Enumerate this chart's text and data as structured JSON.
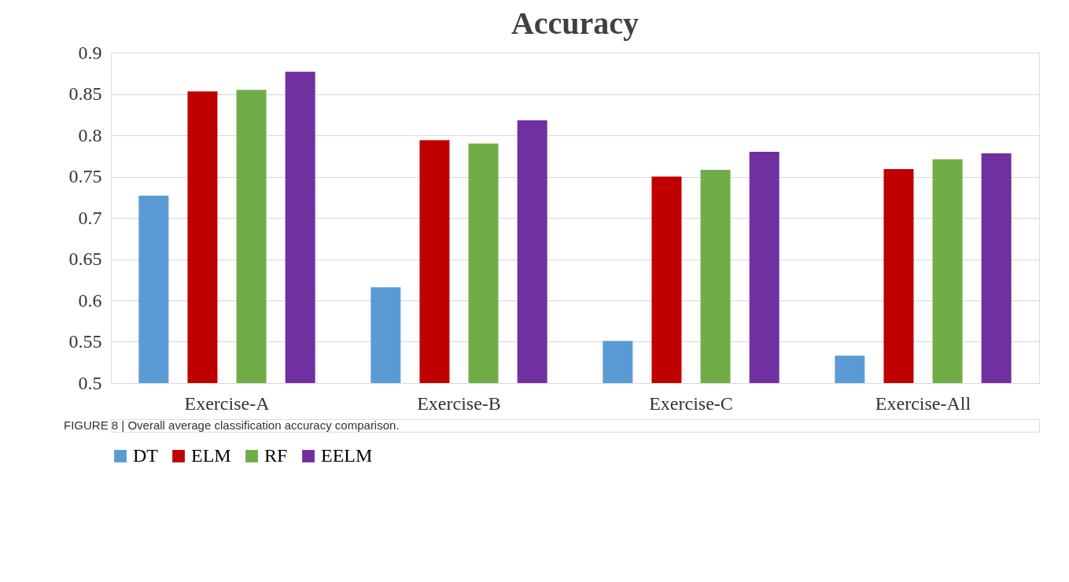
{
  "chart_data": {
    "type": "bar",
    "title": "Accuracy",
    "categories": [
      "Exercise-A",
      "Exercise-B",
      "Exercise-C",
      "Exercise-All"
    ],
    "series": [
      {
        "name": "DT",
        "color": "#5b9bd5",
        "values": [
          0.727,
          0.616,
          0.551,
          0.533
        ]
      },
      {
        "name": "ELM",
        "color": "#c00000",
        "values": [
          0.853,
          0.794,
          0.75,
          0.759
        ]
      },
      {
        "name": "RF",
        "color": "#70ad47",
        "values": [
          0.855,
          0.79,
          0.758,
          0.771
        ]
      },
      {
        "name": "EELM",
        "color": "#7030a0",
        "values": [
          0.877,
          0.818,
          0.78,
          0.778
        ]
      }
    ],
    "ylim": [
      0.5,
      0.9
    ],
    "yticks": [
      0.5,
      0.55,
      0.6,
      0.65,
      0.7,
      0.75,
      0.8,
      0.85,
      0.9
    ],
    "grid": "y",
    "legend": "bottom",
    "annotations": [
      "FIGURE 8 | Overall average classification accuracy comparison."
    ]
  }
}
